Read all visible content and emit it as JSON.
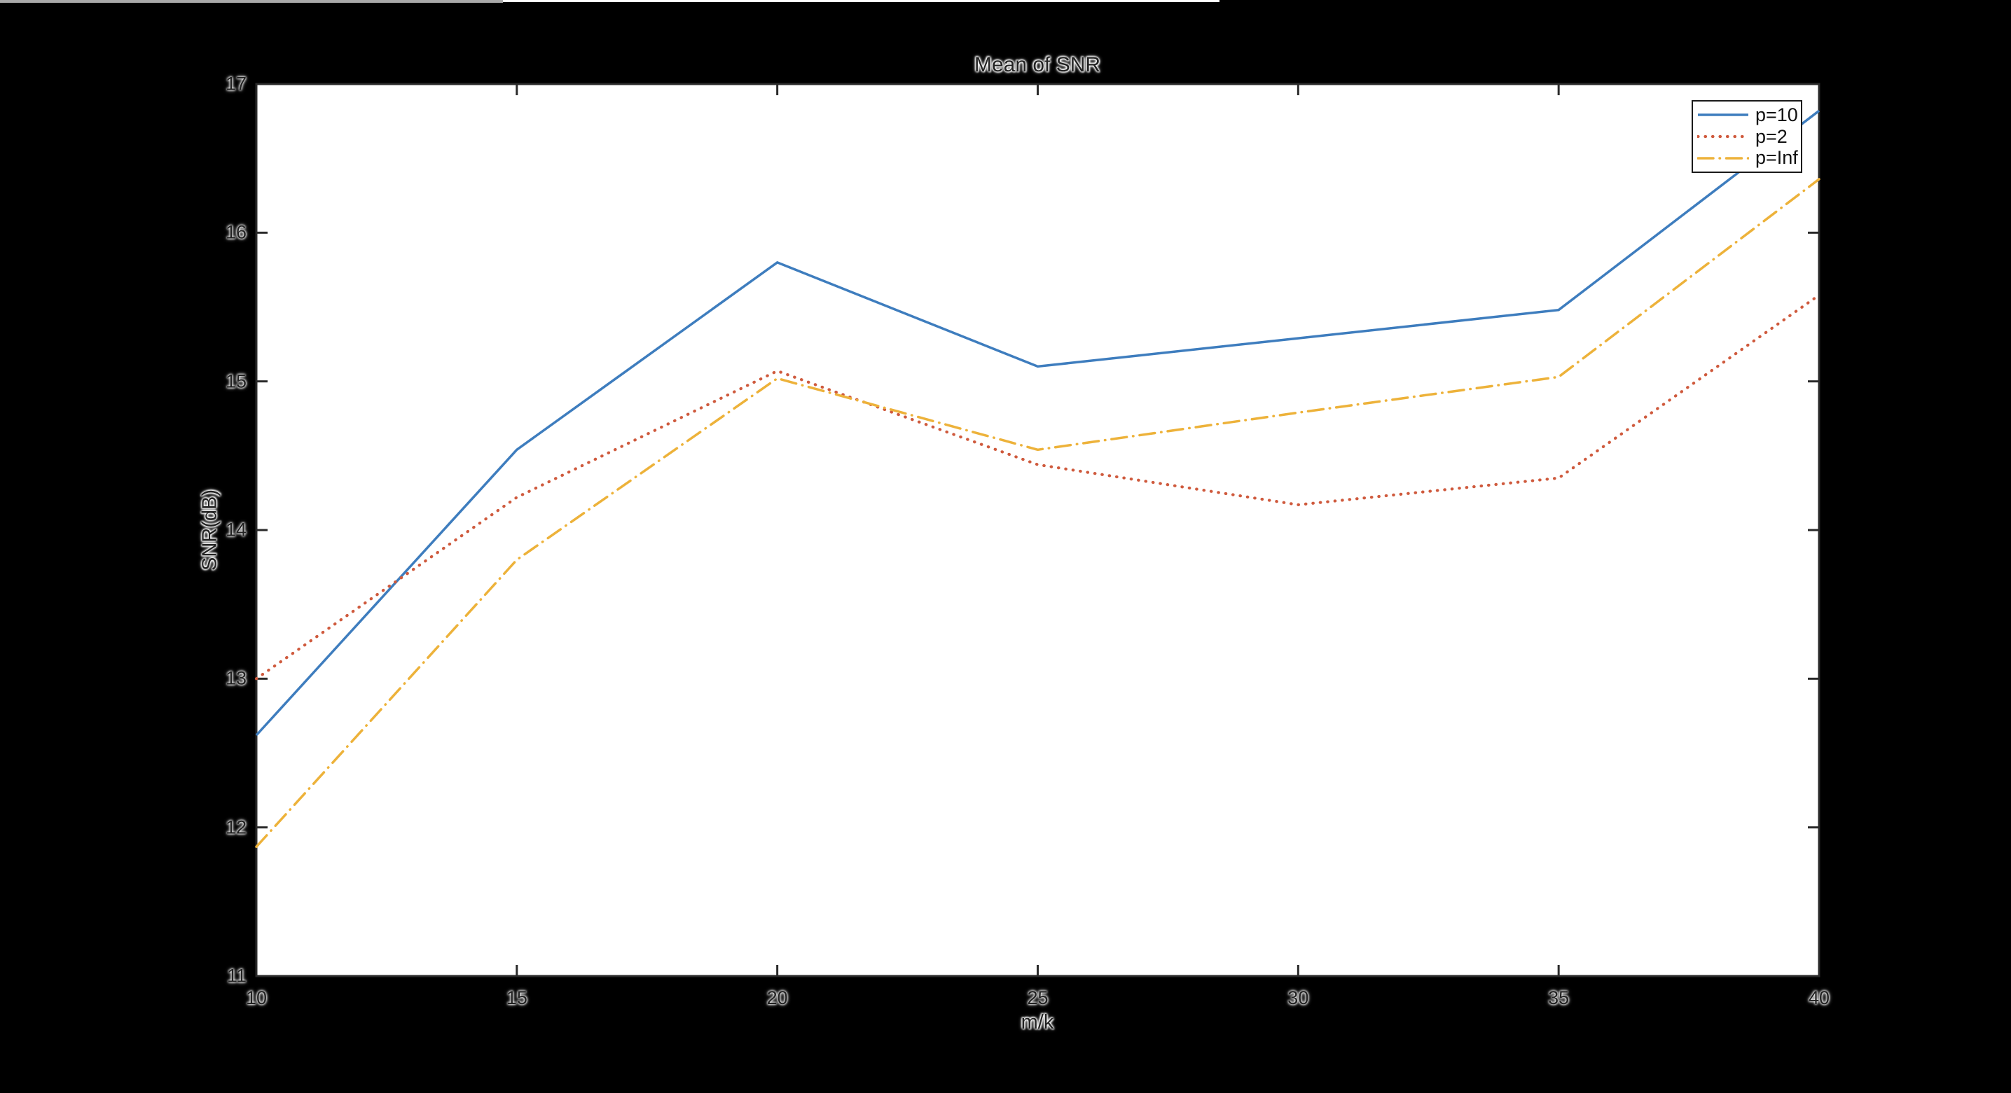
{
  "window": {
    "background": "#000000",
    "edge_fragments": {
      "gray_color": "#a9a9a9",
      "white_color": "#ffffff"
    }
  },
  "chart_data": {
    "type": "line",
    "title": "Mean of SNR",
    "xlabel": "m/k",
    "ylabel": "SNR(dB)",
    "xlim": [
      10,
      40
    ],
    "ylim": [
      11,
      17
    ],
    "xticks": [
      10,
      15,
      20,
      25,
      30,
      35,
      40
    ],
    "yticks": [
      11,
      12,
      13,
      14,
      15,
      16,
      17
    ],
    "grid": false,
    "plot_background": "#ffffff",
    "axis_color": "#2a2a2a",
    "legend_position": "top-right-inside",
    "x": [
      10,
      15,
      20,
      25,
      30,
      35,
      40
    ],
    "series": [
      {
        "name": "p=10",
        "style": "solid",
        "color": "#3e7dbe",
        "values": [
          12.62,
          14.54,
          15.8,
          15.1,
          15.29,
          15.48,
          16.82
        ]
      },
      {
        "name": "p=2",
        "style": "dotted",
        "color": "#cf5a3d",
        "values": [
          13.0,
          14.22,
          15.07,
          14.44,
          14.17,
          14.35,
          15.58
        ]
      },
      {
        "name": "p=Inf",
        "style": "dash-dot",
        "color": "#edb23a",
        "values": [
          11.87,
          13.8,
          15.02,
          14.54,
          14.79,
          15.03,
          16.36
        ]
      }
    ]
  }
}
